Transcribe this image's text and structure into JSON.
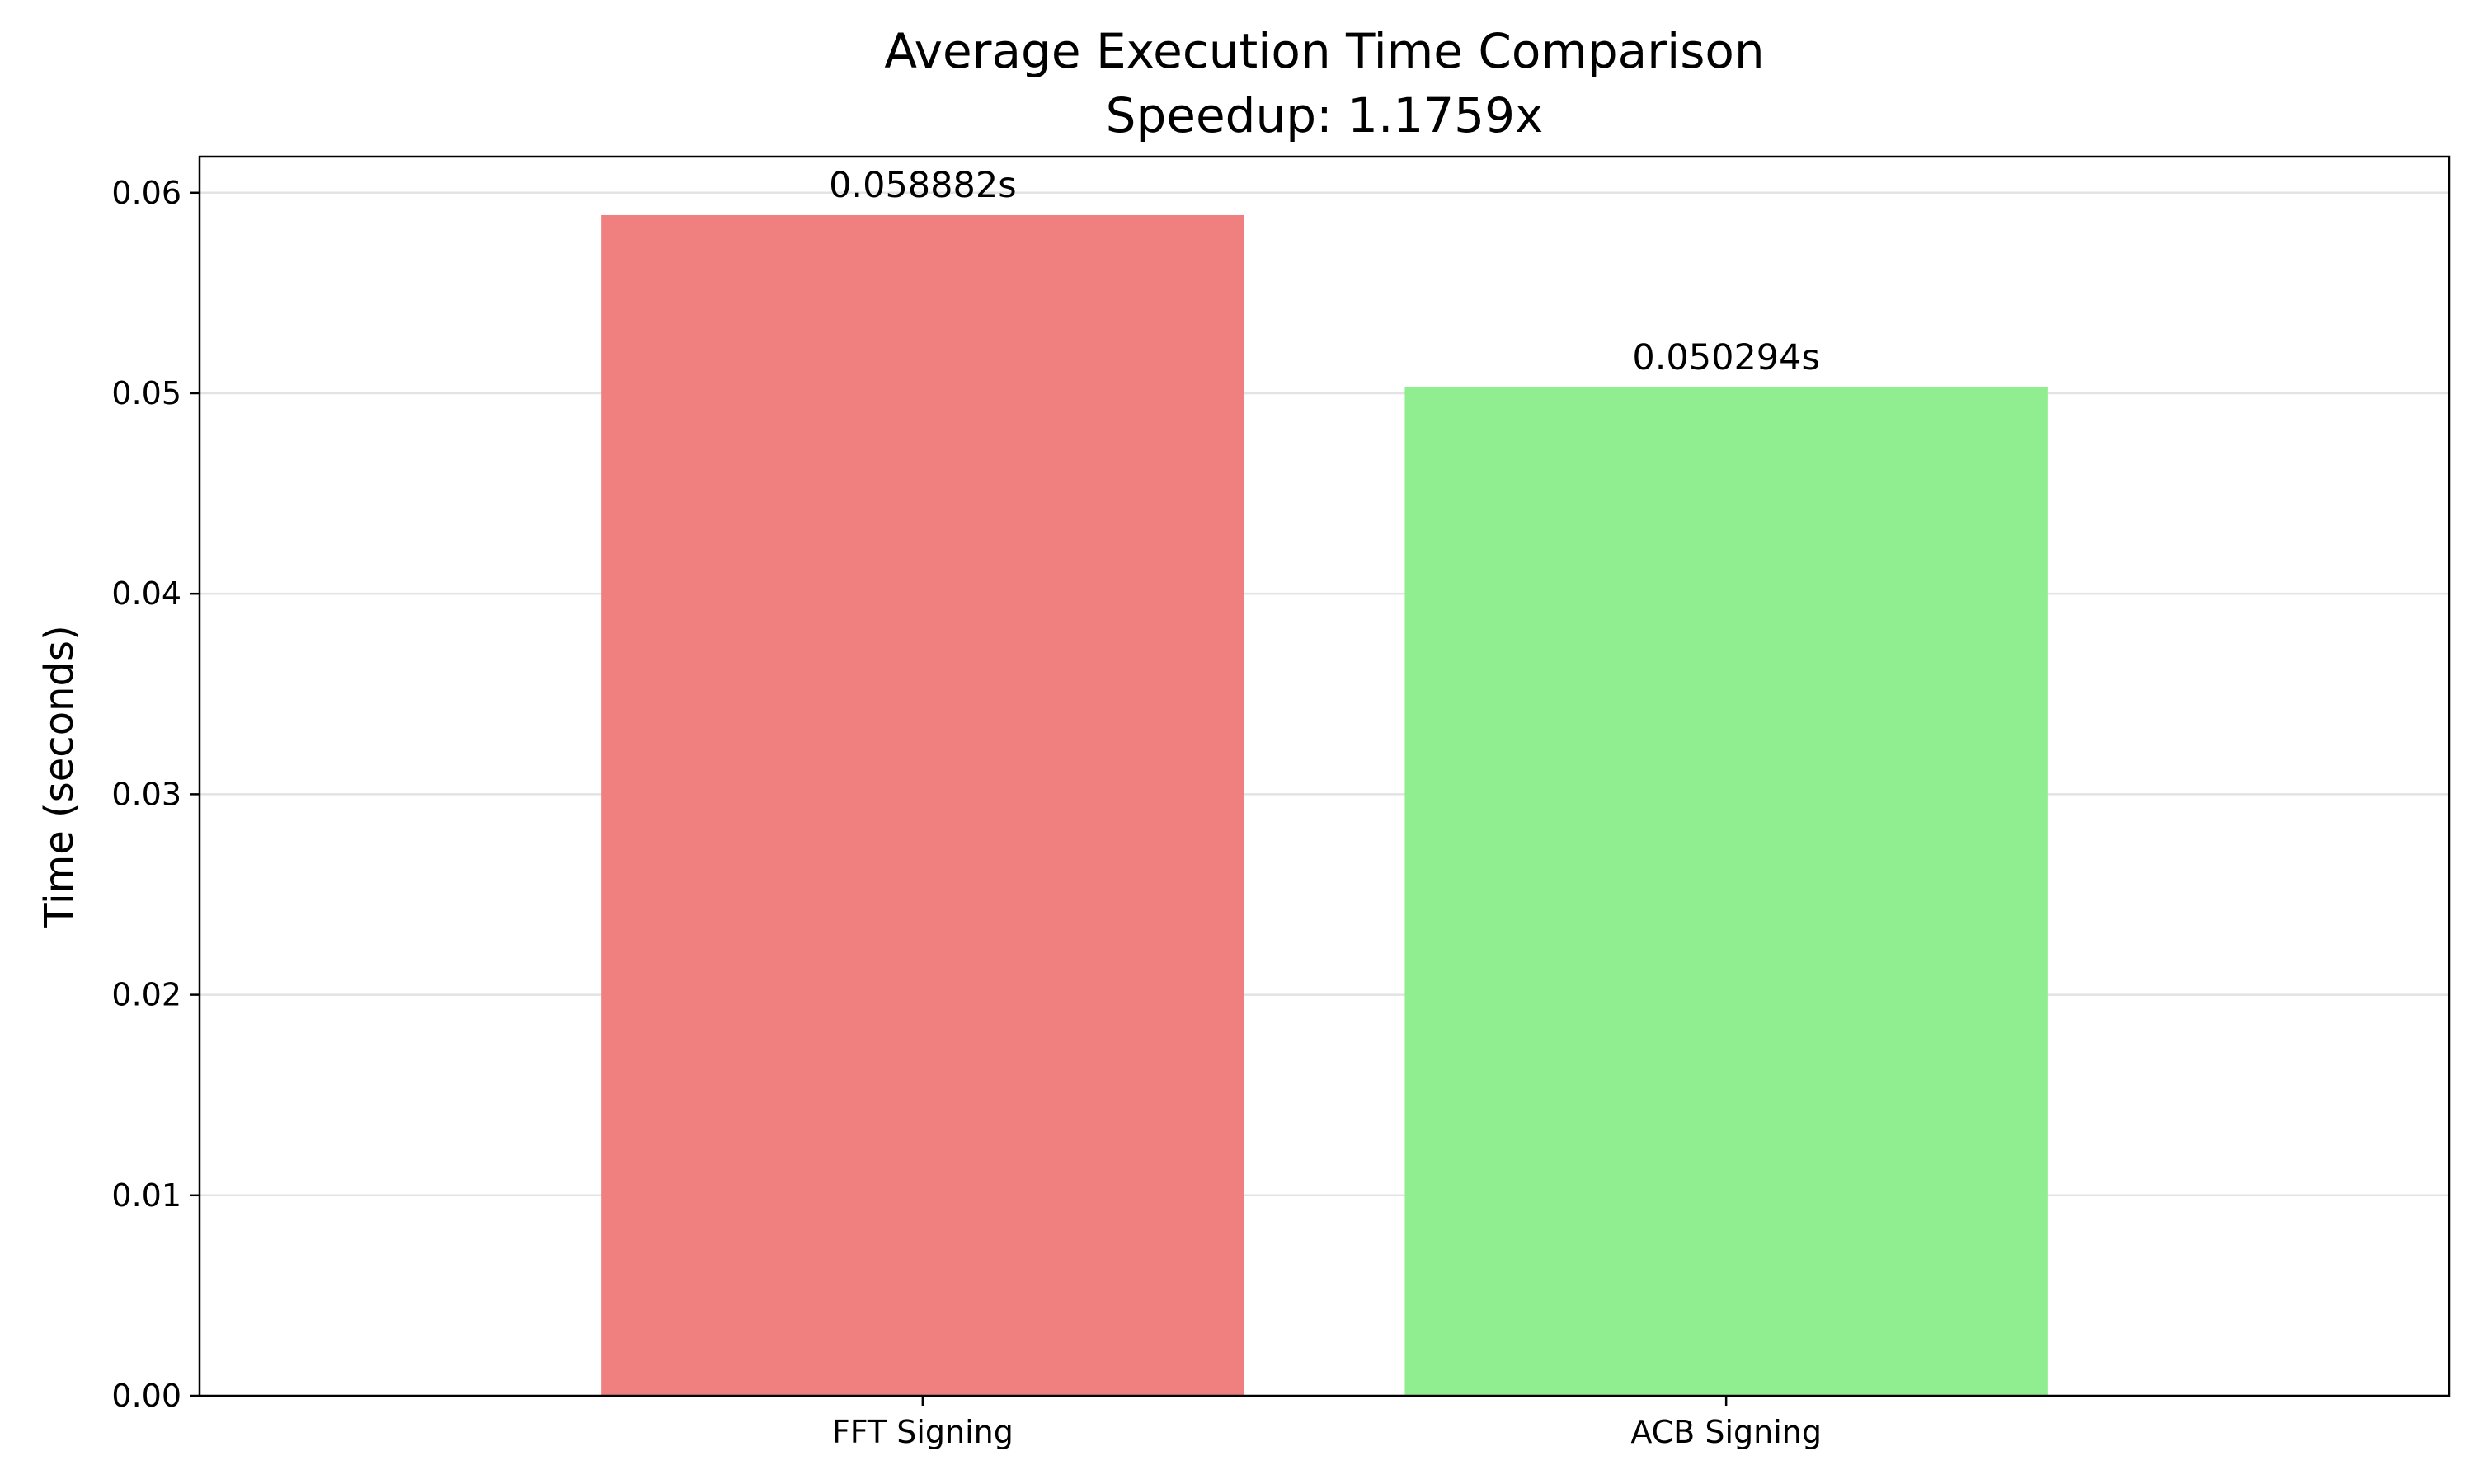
{
  "chart_data": {
    "type": "bar",
    "title": "Average Execution Time Comparison",
    "subtitle": "Speedup: 1.1759x",
    "ylabel": "Time (seconds)",
    "xlabel": "",
    "categories": [
      "FFT Signing",
      "ACB Signing"
    ],
    "values": [
      0.058882,
      0.050294
    ],
    "data_labels": [
      "0.058882s",
      "0.050294s"
    ],
    "colors": [
      "#f08080",
      "#90ee90"
    ],
    "ylim": [
      0,
      0.0618
    ],
    "yticks": [
      0.0,
      0.01,
      0.02,
      0.03,
      0.04,
      0.05,
      0.06
    ],
    "ytick_labels": [
      "0.00",
      "0.01",
      "0.02",
      "0.03",
      "0.04",
      "0.05",
      "0.06"
    ],
    "grid": true,
    "grid_axis": "y"
  }
}
